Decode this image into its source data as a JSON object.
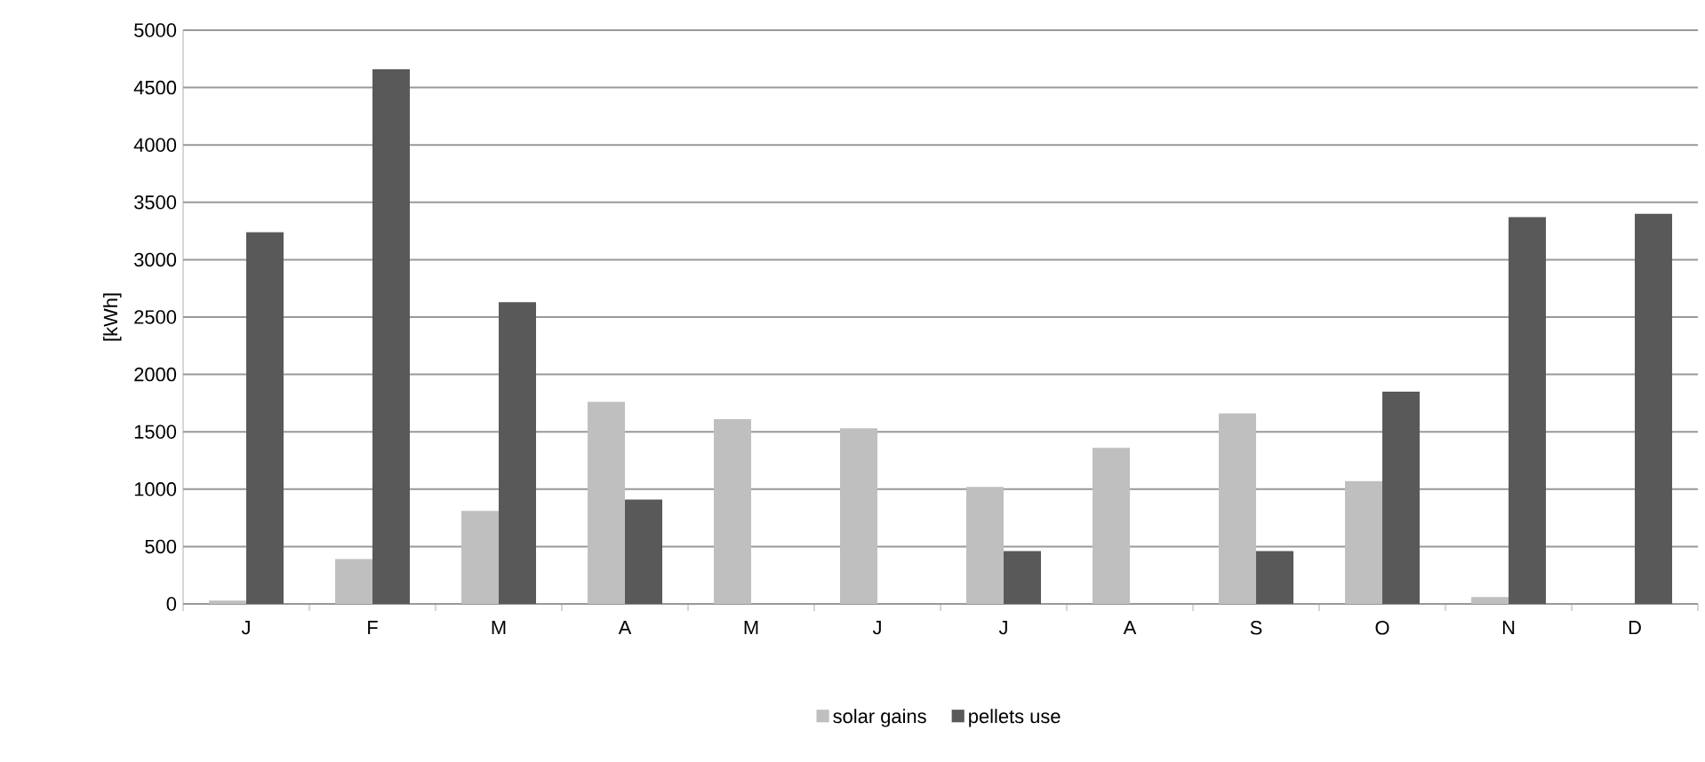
{
  "chart_data": {
    "type": "bar",
    "ylabel": "[kWh]",
    "categories": [
      "J",
      "F",
      "M",
      "A",
      "M",
      "J",
      "J",
      "A",
      "S",
      "O",
      "N",
      "D"
    ],
    "series": [
      {
        "name": "solar gains",
        "color": "#bfbfbf",
        "values": [
          30,
          390,
          810,
          1760,
          1610,
          1530,
          1020,
          1360,
          1660,
          1070,
          60,
          null
        ]
      },
      {
        "name": "pellets use",
        "color": "#595959",
        "values": [
          3240,
          4660,
          2630,
          910,
          0,
          0,
          460,
          0,
          460,
          1850,
          3370,
          3400
        ]
      }
    ],
    "ylim": [
      0,
      5000
    ],
    "yticks": [
      0,
      500,
      1000,
      1500,
      2000,
      2500,
      3000,
      3500,
      4000,
      4500,
      5000
    ],
    "grid": "y",
    "legend": "bottom"
  }
}
